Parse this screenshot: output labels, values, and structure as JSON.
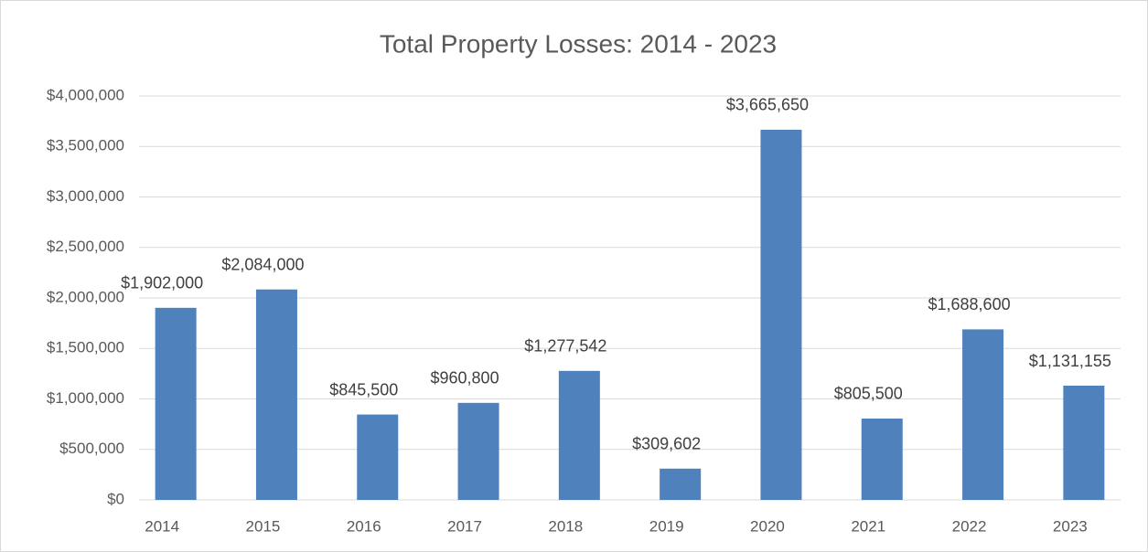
{
  "chart_data": {
    "type": "bar",
    "title": "Total Property Losses: 2014 - 2023",
    "categories": [
      "2014",
      "2015",
      "2016",
      "2017",
      "2018",
      "2019",
      "2020",
      "2021",
      "2022",
      "2023"
    ],
    "values": [
      1902000,
      2084000,
      845500,
      960800,
      1277542,
      309602,
      3665650,
      805500,
      1688600,
      1131155
    ],
    "value_labels": [
      "$1,902,000",
      "$2,084,000",
      "$845,500",
      "$960,800",
      "$1,277,542",
      "$309,602",
      "$3,665,650",
      "$805,500",
      "$1,688,600",
      "$1,131,155"
    ],
    "color": "#4f81bd",
    "ylim": [
      0,
      4000000
    ],
    "yticks": [
      {
        "value": 0,
        "label": "$0"
      },
      {
        "value": 500000,
        "label": "$500,000"
      },
      {
        "value": 1000000,
        "label": "$1,000,000"
      },
      {
        "value": 1500000,
        "label": "$1,500,000"
      },
      {
        "value": 2000000,
        "label": "$2,000,000"
      },
      {
        "value": 2500000,
        "label": "$2,500,000"
      },
      {
        "value": 3000000,
        "label": "$3,000,000"
      },
      {
        "value": 3500000,
        "label": "$3,500,000"
      },
      {
        "value": 4000000,
        "label": "$4,000,000"
      }
    ],
    "grid": true
  }
}
